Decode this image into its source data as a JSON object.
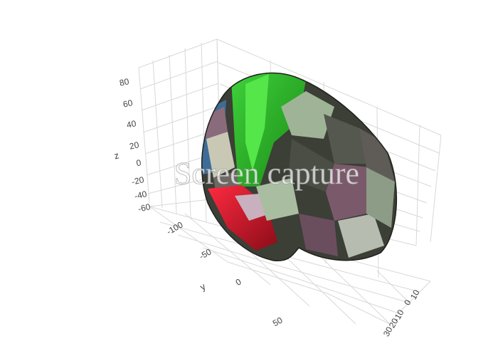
{
  "chart_data": {
    "type": "surface3d",
    "title": "",
    "axes": {
      "x": {
        "label": "",
        "ticks": [
          "10",
          "0",
          "-10",
          "20",
          "30"
        ]
      },
      "y": {
        "label": "y",
        "ticks": [
          "-100",
          "-50",
          "0",
          "50"
        ]
      },
      "z": {
        "label": "z",
        "ticks": [
          "80",
          "60",
          "40",
          "20",
          "0",
          "-20",
          "-40",
          "-60"
        ]
      }
    },
    "grid": true,
    "legend": "none",
    "colors": {
      "frontal_green": "#22b21a",
      "highlight_green": "#3fd23a",
      "temporal_red": "#e0102a",
      "dark_base": "#3b3f36",
      "mauve": "#7a5a6a",
      "pale_sage": "#a9bea1",
      "slate_blue": "#3d6c96",
      "grid": "#d8d8d8"
    }
  },
  "watermark": {
    "text": "Screen capture"
  }
}
